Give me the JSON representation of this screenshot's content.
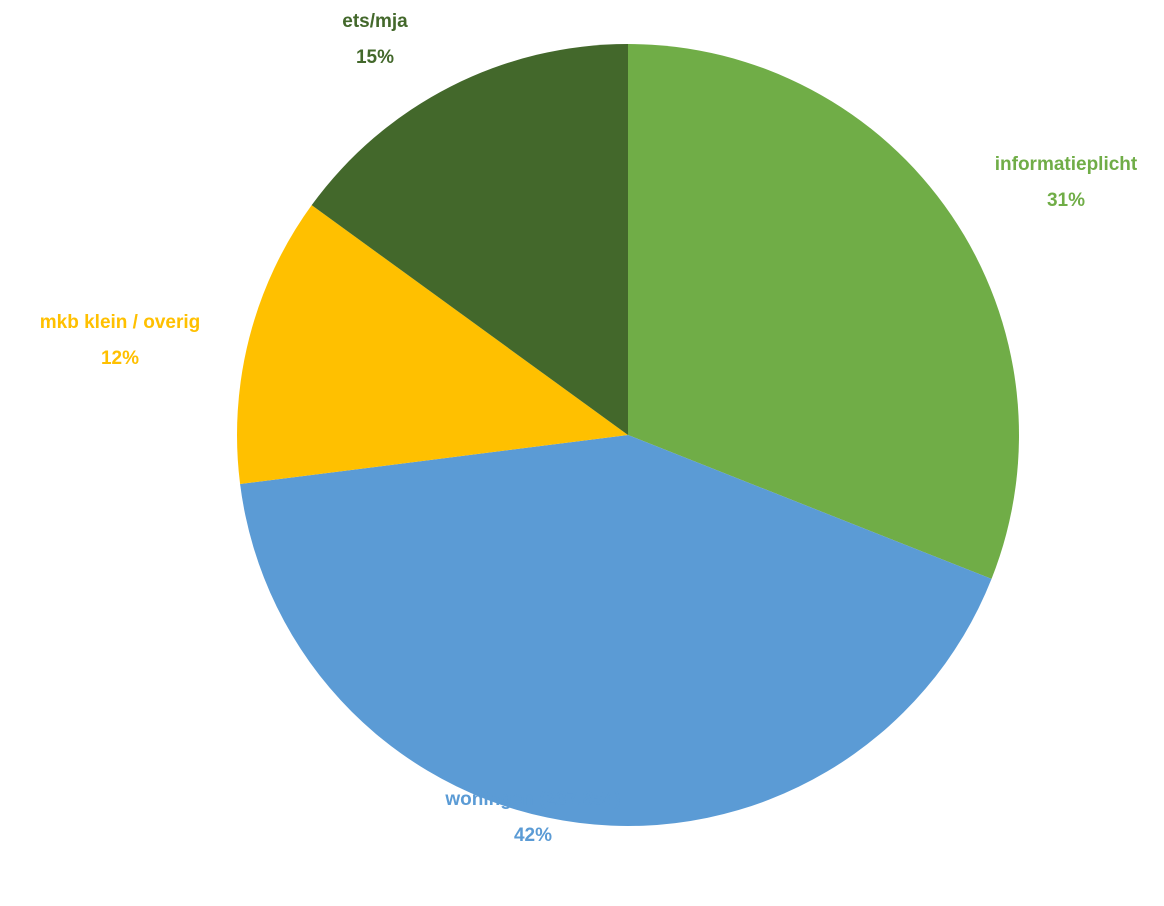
{
  "chart_data": {
    "type": "pie",
    "categories": [
      "informatieplicht",
      "woningen (237.854)",
      "mkb klein / overig",
      "ets/mja"
    ],
    "values": [
      31,
      42,
      12,
      15
    ],
    "value_labels": [
      "31%",
      "42%",
      "12%",
      "15%"
    ],
    "colors": [
      "#70ad47",
      "#5b9bd5",
      "#ffc000",
      "#43682b"
    ]
  }
}
